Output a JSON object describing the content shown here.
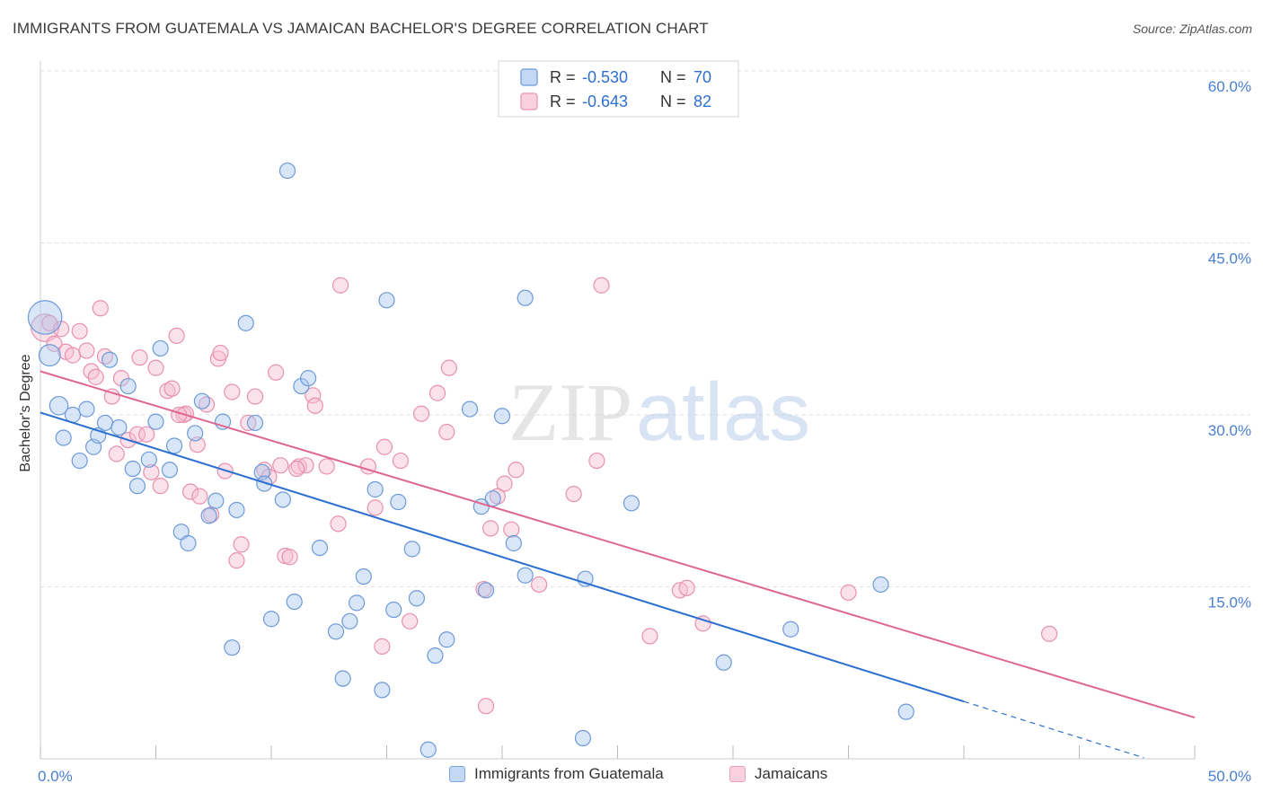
{
  "title": "IMMIGRANTS FROM GUATEMALA VS JAMAICAN BACHELOR'S DEGREE CORRELATION CHART",
  "source": "Source: ZipAtlas.com",
  "watermark": {
    "zip": "ZIP",
    "atlas": "atlas"
  },
  "colors": {
    "blue_fill": "#a9c8ef",
    "blue_stroke": "#6d9ad8",
    "blue_line": "#2b6fd0",
    "pink_fill": "#f6bcd0",
    "pink_stroke": "#e891ae",
    "pink_line": "#e06690",
    "tick": "#4a7fd1",
    "grid": "#dddddd"
  },
  "legend": {
    "rows": [
      {
        "r_label": "R = ",
        "r_value": "-0.530",
        "n_label": "N = ",
        "n_value": "70",
        "series": "blue"
      },
      {
        "r_label": "R = ",
        "r_value": "-0.643",
        "n_label": "N = ",
        "n_value": "82",
        "series": "pink"
      }
    ]
  },
  "bottom_legend": [
    {
      "label": "Immigrants from Guatemala",
      "series": "blue"
    },
    {
      "label": "Jamaicans",
      "series": "pink"
    }
  ],
  "chart_data": {
    "type": "scatter",
    "title": "IMMIGRANTS FROM GUATEMALA VS JAMAICAN BACHELOR'S DEGREE CORRELATION CHART",
    "xlabel": "",
    "ylabel": "Bachelor's Degree",
    "xlim": [
      0,
      50
    ],
    "ylim": [
      0,
      60
    ],
    "x_tick_labels": [
      {
        "value": 0,
        "label": "0.0%"
      },
      {
        "value": 50,
        "label": "50.0%"
      }
    ],
    "y_tick_labels": [
      {
        "value": 15,
        "label": "15.0%"
      },
      {
        "value": 30,
        "label": "30.0%"
      },
      {
        "value": 45,
        "label": "45.0%"
      },
      {
        "value": 60,
        "label": "60.0%"
      }
    ],
    "grid": true,
    "legend_position": "top-center",
    "series": [
      {
        "name": "Immigrants from Guatemala",
        "color": "blue",
        "trend": {
          "x": [
            0,
            40,
            50
          ],
          "y": [
            30.2,
            5.0,
            -1.3
          ],
          "solid_until": 40
        },
        "points": [
          [
            0.2,
            38.5,
            2.2
          ],
          [
            0.4,
            35.2,
            1.4
          ],
          [
            0.8,
            30.8,
            1.2
          ],
          [
            1.0,
            28.0,
            1
          ],
          [
            1.4,
            30.0,
            1
          ],
          [
            1.7,
            26.0,
            1
          ],
          [
            2.0,
            30.5,
            1
          ],
          [
            2.3,
            27.2,
            1
          ],
          [
            2.5,
            28.2,
            1
          ],
          [
            2.8,
            29.3,
            1
          ],
          [
            3.0,
            34.8,
            1
          ],
          [
            3.4,
            28.9,
            1
          ],
          [
            3.8,
            32.5,
            1
          ],
          [
            4.0,
            25.3,
            1
          ],
          [
            4.2,
            23.8,
            1
          ],
          [
            4.7,
            26.1,
            1
          ],
          [
            5.0,
            29.4,
            1
          ],
          [
            5.2,
            35.8,
            1
          ],
          [
            5.6,
            25.2,
            1
          ],
          [
            5.8,
            27.3,
            1
          ],
          [
            6.1,
            19.8,
            1
          ],
          [
            6.4,
            18.8,
            1
          ],
          [
            6.7,
            28.4,
            1
          ],
          [
            7.0,
            31.2,
            1
          ],
          [
            7.3,
            21.2,
            1
          ],
          [
            7.6,
            22.5,
            1
          ],
          [
            7.9,
            29.4,
            1
          ],
          [
            8.3,
            9.7,
            1
          ],
          [
            8.5,
            21.7,
            1
          ],
          [
            8.9,
            38.0,
            1
          ],
          [
            9.3,
            29.3,
            1
          ],
          [
            9.6,
            25.0,
            1
          ],
          [
            9.7,
            24.0,
            1
          ],
          [
            10.0,
            12.2,
            1
          ],
          [
            10.5,
            22.6,
            1
          ],
          [
            10.7,
            51.3,
            1
          ],
          [
            11.0,
            13.7,
            1
          ],
          [
            11.3,
            32.5,
            1
          ],
          [
            11.6,
            33.2,
            1
          ],
          [
            12.1,
            18.4,
            1
          ],
          [
            12.8,
            11.1,
            1
          ],
          [
            13.1,
            7.0,
            1
          ],
          [
            13.4,
            12.0,
            1
          ],
          [
            13.7,
            13.6,
            1
          ],
          [
            14.0,
            15.9,
            1
          ],
          [
            14.5,
            23.5,
            1
          ],
          [
            14.8,
            6.0,
            1
          ],
          [
            15.0,
            40.0,
            1
          ],
          [
            15.3,
            13.0,
            1
          ],
          [
            15.5,
            22.4,
            1
          ],
          [
            16.1,
            18.3,
            1
          ],
          [
            16.3,
            14.0,
            1
          ],
          [
            16.8,
            0.8,
            1
          ],
          [
            17.1,
            9.0,
            1
          ],
          [
            17.6,
            10.4,
            1
          ],
          [
            18.6,
            30.5,
            1
          ],
          [
            19.1,
            22.0,
            1
          ],
          [
            19.3,
            14.7,
            1
          ],
          [
            19.6,
            22.7,
            1
          ],
          [
            20.0,
            29.9,
            1
          ],
          [
            20.5,
            18.8,
            1
          ],
          [
            21.0,
            16.0,
            1
          ],
          [
            21.0,
            40.2,
            1
          ],
          [
            23.5,
            1.8,
            1
          ],
          [
            23.6,
            15.7,
            1
          ],
          [
            25.6,
            22.3,
            1
          ],
          [
            29.6,
            8.4,
            1
          ],
          [
            32.5,
            11.3,
            1
          ],
          [
            36.4,
            15.2,
            1
          ],
          [
            37.5,
            4.1,
            1
          ]
        ]
      },
      {
        "name": "Jamaicans",
        "color": "pink",
        "trend": {
          "x": [
            0,
            50
          ],
          "y": [
            33.8,
            3.6
          ],
          "solid_until": 50
        },
        "points": [
          [
            0.2,
            37.6,
            1.8
          ],
          [
            0.4,
            38.0,
            1
          ],
          [
            0.6,
            36.2,
            1
          ],
          [
            0.9,
            37.5,
            1
          ],
          [
            1.1,
            35.5,
            1
          ],
          [
            1.4,
            35.2,
            1
          ],
          [
            1.7,
            37.3,
            1
          ],
          [
            2.0,
            35.6,
            1
          ],
          [
            2.2,
            33.8,
            1
          ],
          [
            2.4,
            33.3,
            1
          ],
          [
            2.6,
            39.3,
            1
          ],
          [
            2.8,
            35.1,
            1
          ],
          [
            3.1,
            31.6,
            1
          ],
          [
            3.3,
            26.6,
            1
          ],
          [
            3.5,
            33.2,
            1
          ],
          [
            3.8,
            27.8,
            1
          ],
          [
            4.2,
            28.3,
            1
          ],
          [
            4.3,
            35.0,
            1
          ],
          [
            4.6,
            28.3,
            1
          ],
          [
            4.8,
            25.0,
            1
          ],
          [
            5.0,
            34.1,
            1
          ],
          [
            5.2,
            23.8,
            1
          ],
          [
            5.5,
            32.1,
            1
          ],
          [
            5.7,
            32.3,
            1
          ],
          [
            5.9,
            36.9,
            1
          ],
          [
            6.2,
            30.0,
            1
          ],
          [
            6.3,
            30.1,
            1
          ],
          [
            6.5,
            23.3,
            1
          ],
          [
            6.8,
            27.4,
            1
          ],
          [
            6.9,
            22.9,
            1
          ],
          [
            7.2,
            30.9,
            1
          ],
          [
            7.4,
            21.3,
            1
          ],
          [
            7.7,
            34.9,
            1
          ],
          [
            7.8,
            35.4,
            1
          ],
          [
            8.0,
            25.1,
            1
          ],
          [
            8.3,
            32.0,
            1
          ],
          [
            8.5,
            17.3,
            1
          ],
          [
            8.7,
            18.7,
            1
          ],
          [
            9.0,
            29.3,
            1
          ],
          [
            9.3,
            31.6,
            1
          ],
          [
            9.7,
            25.2,
            1
          ],
          [
            9.9,
            24.6,
            1
          ],
          [
            10.2,
            33.7,
            1
          ],
          [
            10.4,
            25.6,
            1
          ],
          [
            10.6,
            17.7,
            1
          ],
          [
            10.8,
            17.6,
            1
          ],
          [
            11.2,
            25.5,
            1
          ],
          [
            11.5,
            25.6,
            1
          ],
          [
            11.8,
            31.7,
            1
          ],
          [
            11.9,
            30.8,
            1
          ],
          [
            12.4,
            25.5,
            1
          ],
          [
            12.9,
            20.5,
            1
          ],
          [
            13.0,
            41.3,
            1
          ],
          [
            14.2,
            25.5,
            1
          ],
          [
            14.5,
            21.9,
            1
          ],
          [
            14.8,
            9.8,
            1
          ],
          [
            14.9,
            27.2,
            1
          ],
          [
            15.6,
            26.0,
            1
          ],
          [
            16.0,
            12.0,
            1
          ],
          [
            16.5,
            30.1,
            1
          ],
          [
            17.2,
            31.9,
            1
          ],
          [
            17.6,
            28.5,
            1
          ],
          [
            17.7,
            34.1,
            1
          ],
          [
            19.2,
            14.8,
            1
          ],
          [
            19.3,
            4.6,
            1
          ],
          [
            19.5,
            20.1,
            1
          ],
          [
            19.8,
            22.9,
            1
          ],
          [
            20.1,
            24.0,
            1
          ],
          [
            20.4,
            20.0,
            1
          ],
          [
            20.6,
            25.2,
            1
          ],
          [
            21.6,
            15.2,
            1
          ],
          [
            23.1,
            23.1,
            1
          ],
          [
            24.1,
            26.0,
            1
          ],
          [
            24.3,
            41.3,
            1
          ],
          [
            26.4,
            10.7,
            1
          ],
          [
            27.7,
            14.7,
            1
          ],
          [
            28.0,
            14.9,
            1
          ],
          [
            28.7,
            11.8,
            1
          ],
          [
            35.0,
            14.5,
            1
          ],
          [
            43.7,
            10.9,
            1
          ],
          [
            11.1,
            25.3,
            1
          ],
          [
            6.0,
            30.0,
            1
          ]
        ]
      }
    ]
  }
}
